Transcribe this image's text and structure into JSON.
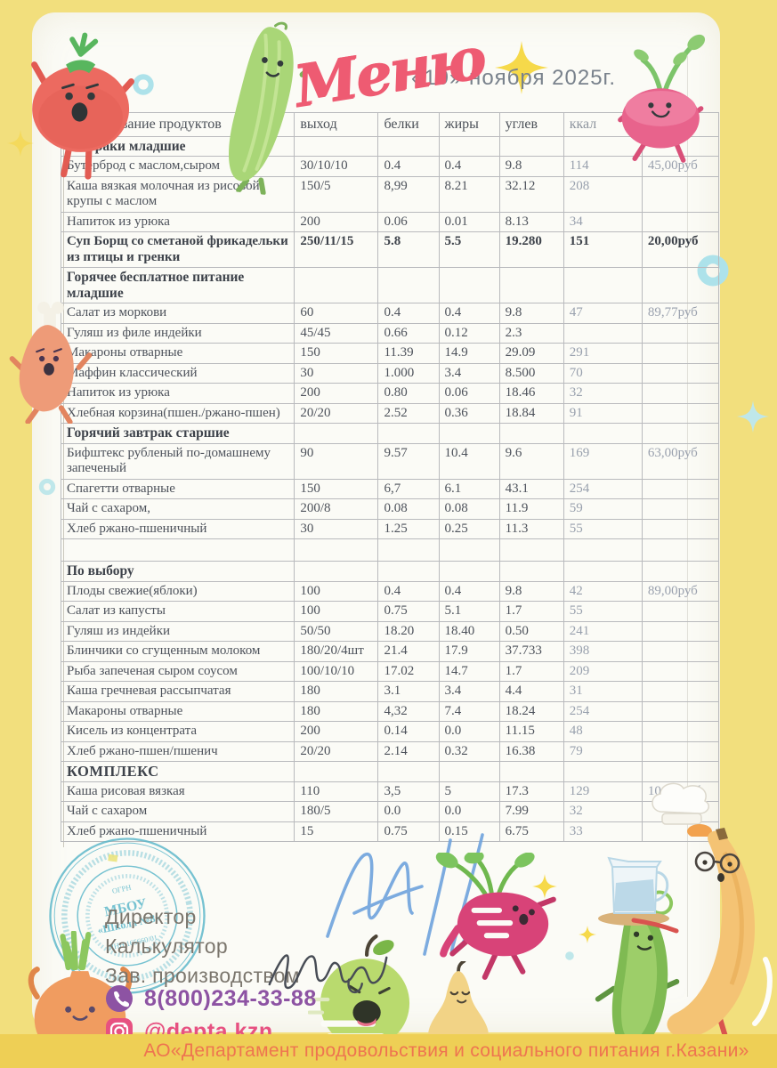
{
  "header": {
    "title": "Меню",
    "date": "«19» ноября  2025г."
  },
  "table": {
    "columns": [
      "Наименование продуктов",
      "выход",
      "белки",
      "жиры",
      "углев",
      "ккал",
      "цена"
    ],
    "rows": [
      {
        "type": "section",
        "name": "Завтраки младшие"
      },
      {
        "type": "item",
        "name": "Бутерброд с маслом,сыром",
        "out": "30/10/10",
        "protein": "0.4",
        "fat": "0.4",
        "carbs": "9.8",
        "kcal": "114",
        "price": "45,00руб"
      },
      {
        "type": "item",
        "name": "Каша вязкая молочная из рисовой крупы с маслом",
        "out": "150/5",
        "protein": "8,99",
        "fat": "8.21",
        "carbs": "32.12",
        "kcal": "208",
        "price": ""
      },
      {
        "type": "item",
        "name": "Напиток из урюка",
        "out": "200",
        "protein": "0.06",
        "fat": "0.01",
        "carbs": "8.13",
        "kcal": "34",
        "price": ""
      },
      {
        "type": "item",
        "bold": true,
        "name": "Суп Борщ  со сметаной фрикадельки из птицы и гренки",
        "out": "250/11/15",
        "protein": "5.8",
        "fat": "5.5",
        "carbs": "19.280",
        "kcal": "151",
        "price": "20,00руб"
      },
      {
        "type": "section",
        "name": "Горячее бесплатное питание младшие"
      },
      {
        "type": "item",
        "name": "Салат из моркови",
        "out": "60",
        "protein": "0.4",
        "fat": "0.4",
        "carbs": "9.8",
        "kcal": "47",
        "price": "89,77руб"
      },
      {
        "type": "item",
        "name": "Гуляш из филе индейки",
        "out": "45/45",
        "protein": "0.66",
        "fat": "0.12",
        "carbs": "2.3",
        "kcal": "",
        "price": ""
      },
      {
        "type": "item",
        "name": "Макароны отварные",
        "out": "150",
        "protein": "11.39",
        "fat": "14.9",
        "carbs": "29.09",
        "kcal": "291",
        "price": ""
      },
      {
        "type": "item",
        "name": "Маффин классический",
        "out": "30",
        "protein": "1.000",
        "fat": "3.4",
        "carbs": "8.500",
        "kcal": "70",
        "price": ""
      },
      {
        "type": "item",
        "name": "Напиток из урюка",
        "out": "200",
        "protein": "0.80",
        "fat": "0.06",
        "carbs": "18.46",
        "kcal": "32",
        "price": ""
      },
      {
        "type": "item",
        "name": "Хлебная корзина(пшен./ржано-пшен)",
        "out": "20/20",
        "protein": "2.52",
        "fat": "0.36",
        "carbs": "18.84",
        "kcal": "91",
        "price": ""
      },
      {
        "type": "section",
        "name": "Горячий завтрак старшие"
      },
      {
        "type": "item",
        "name": "Бифштекс рубленый по-домашнему запеченый",
        "out": "90",
        "protein": "9.57",
        "fat": "10.4",
        "carbs": "9.6",
        "kcal": "169",
        "price": "63,00руб"
      },
      {
        "type": "item",
        "name": "Спагетти отварные",
        "out": "150",
        "protein": "6,7",
        "fat": "6.1",
        "carbs": "43.1",
        "kcal": "254",
        "price": ""
      },
      {
        "type": "item",
        "name": "Чай с сахаром,",
        "out": "200/8",
        "protein": "0.08",
        "fat": "0.08",
        "carbs": "11.9",
        "kcal": "59",
        "price": ""
      },
      {
        "type": "item",
        "name": "Хлеб ржано-пшеничный",
        "out": "30",
        "protein": "1.25",
        "fat": "0.25",
        "carbs": "11.3",
        "kcal": "55",
        "price": ""
      },
      {
        "type": "spacer"
      },
      {
        "type": "section",
        "name": "По выбору"
      },
      {
        "type": "item",
        "name": "Плоды свежие(яблоки)",
        "out": "100",
        "protein": "0.4",
        "fat": "0.4",
        "carbs": "9.8",
        "kcal": "42",
        "price": "89,00руб"
      },
      {
        "type": "item",
        "name": "Салат из капусты",
        "out": "100",
        "protein": "0.75",
        "fat": "5.1",
        "carbs": "1.7",
        "kcal": "55",
        "price": ""
      },
      {
        "type": "item",
        "name": "Гуляш из индейки",
        "out": "50/50",
        "protein": "18.20",
        "fat": "18.40",
        "carbs": "0.50",
        "kcal": "241",
        "price": ""
      },
      {
        "type": "item",
        "name": "Блинчики со сгущенным молоком",
        "out": "180/20/4шт",
        "protein": "21.4",
        "fat": "17.9",
        "carbs": "37.733",
        "kcal": "398",
        "price": ""
      },
      {
        "type": "item",
        "name": "Рыба запеченая сыром соусом",
        "out": "100/10/10",
        "protein": "17.02",
        "fat": "14.7",
        "carbs": "1.7",
        "kcal": "209",
        "price": ""
      },
      {
        "type": "item",
        "name": "Каша гречневая рассыпчатая",
        "out": "180",
        "protein": "3.1",
        "fat": "3.4",
        "carbs": "4.4",
        "kcal": "31",
        "price": ""
      },
      {
        "type": "item",
        "name": "Макароны отварные",
        "out": "180",
        "protein": "4,32",
        "fat": "7.4",
        "carbs": "18.24",
        "kcal": "254",
        "price": ""
      },
      {
        "type": "item",
        "name": "Кисель из концентрата",
        "out": "200",
        "protein": "0.14",
        "fat": "0.0",
        "carbs": "11.15",
        "kcal": "48",
        "price": ""
      },
      {
        "type": "item",
        "name": "Хлеб ржано-пшен/пшенич",
        "out": "20/20",
        "protein": "2.14",
        "fat": "0.32",
        "carbs": "16.38",
        "kcal": "79",
        "price": ""
      },
      {
        "type": "section",
        "komplex": true,
        "name": "КОМПЛЕКС"
      },
      {
        "type": "item",
        "name": "Каша рисовая вязкая",
        "out": "110",
        "protein": "3,5",
        "fat": "5",
        "carbs": "17.3",
        "kcal": "129",
        "price": "10,3  0руб"
      },
      {
        "type": "item",
        "name": "Чай с сахаром",
        "out": "180/5",
        "protein": "0.0",
        "fat": "0.0",
        "carbs": "7.99",
        "kcal": "32",
        "price": ""
      },
      {
        "type": "item",
        "name": "Хлеб ржано-пшеничный",
        "out": "15",
        "protein": "0.75",
        "fat": "0.15",
        "carbs": "6.75",
        "kcal": "33",
        "price": ""
      }
    ]
  },
  "signature_block": {
    "labels": [
      "Директор",
      "Калькулятор",
      "Зав. производством"
    ]
  },
  "stamp": {
    "top": "ОГРН",
    "line1": "МБОУ",
    "line2": "«Школа №8»",
    "line3": "ИНН 165660/01"
  },
  "contact": {
    "phone": "8(800)234-33-88",
    "instagram": "@depta.kzn"
  },
  "footer": {
    "text": "АО«Департамент продовольствия и социального питания г.Казани»"
  },
  "palette": {
    "frame_yellow": "#f2df7d",
    "footer_band": "#eecf55",
    "footer_text": "#ee7450",
    "title_pink": "#ee5b72",
    "phone_purple": "#8d53a3",
    "instagram_pink": "#e75181",
    "stamp_teal": "#5fb9cb",
    "signature_blue": "#6fa3dd"
  },
  "decoration_names": [
    "tomato-character",
    "cucumber-character",
    "radish-character",
    "chicken-drumstick-character",
    "onion-character",
    "green-apple-character",
    "pear-character",
    "beet-character",
    "pea-pod-character",
    "banana-waiter-character",
    "milk-jug",
    "chef-hat",
    "school-stamp",
    "sparkles",
    "teal-rings"
  ]
}
